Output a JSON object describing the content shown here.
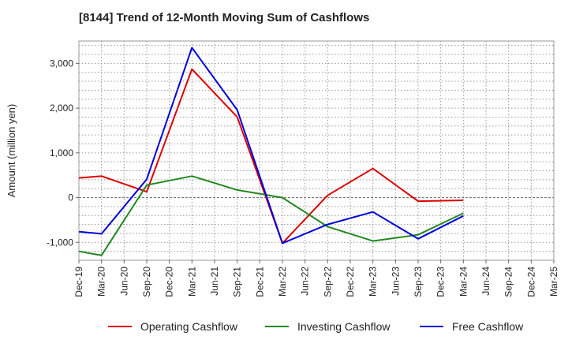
{
  "chart_data": {
    "type": "line",
    "title": "[8144]  Trend of 12-Month Moving Sum of Cashflows",
    "ylabel": "Amount (million yen)",
    "xlabel": "",
    "categories": [
      "Dec-19",
      "Mar-20",
      "Jun-20",
      "Sep-20",
      "Dec-20",
      "Mar-21",
      "Jun-21",
      "Sep-21",
      "Dec-21",
      "Mar-22",
      "Jun-22",
      "Sep-22",
      "Dec-22",
      "Mar-23",
      "Jun-23",
      "Sep-23",
      "Dec-23",
      "Mar-24",
      "Jun-24",
      "Sep-24",
      "Dec-24",
      "Mar-25"
    ],
    "ylim": [
      -1400,
      3500
    ],
    "yticks": [
      3000,
      2000,
      1000,
      0,
      -1000
    ],
    "ytick_labels": [
      "3,000",
      "2,000",
      "1,000",
      "0",
      "-1,000"
    ],
    "grid": true,
    "legend_position": "bottom",
    "series": [
      {
        "name": "Operating Cashflow",
        "color": "#dd0000",
        "values": [
          440,
          480,
          null,
          130,
          null,
          2870,
          null,
          1800,
          null,
          -1020,
          null,
          50,
          null,
          650,
          null,
          -80,
          null,
          -60,
          null,
          null,
          null,
          null
        ]
      },
      {
        "name": "Investing Cashflow",
        "color": "#228822",
        "values": [
          -1200,
          -1290,
          null,
          280,
          null,
          480,
          null,
          170,
          null,
          0,
          null,
          -650,
          null,
          -970,
          null,
          -830,
          null,
          -350,
          null,
          null,
          null,
          null
        ]
      },
      {
        "name": "Free Cashflow",
        "color": "#0000dd",
        "values": [
          -760,
          -810,
          null,
          410,
          null,
          3350,
          null,
          1960,
          null,
          -1020,
          null,
          -600,
          null,
          -320,
          null,
          -920,
          null,
          -410,
          null,
          null,
          null,
          null
        ]
      }
    ]
  }
}
